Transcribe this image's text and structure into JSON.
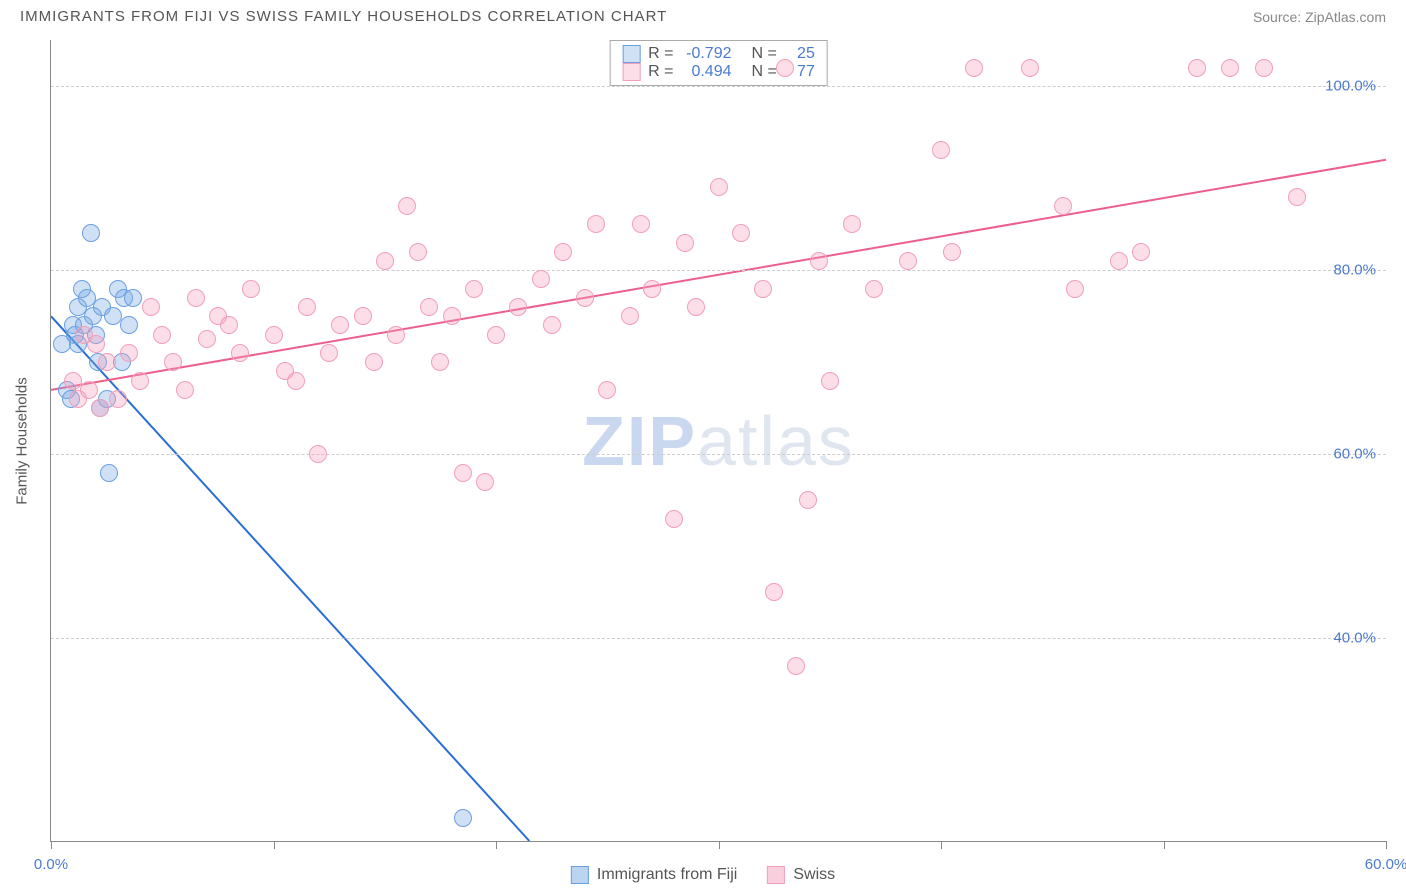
{
  "header": {
    "title": "IMMIGRANTS FROM FIJI VS SWISS FAMILY HOUSEHOLDS CORRELATION CHART",
    "source_prefix": "Source: ",
    "source_link": "ZipAtlas.com"
  },
  "watermark": {
    "part1": "ZIP",
    "part2": "atlas",
    "color1": "#c9d7ef",
    "color2": "#dfe6ef"
  },
  "chart": {
    "type": "scatter",
    "background_color": "#ffffff",
    "grid_color": "#cccccc",
    "axis_color": "#888888",
    "label_color": "#4a7bd0",
    "ylabel": "Family Households",
    "xlim": [
      0,
      60
    ],
    "ylim": [
      18,
      105
    ],
    "yticks": [
      40,
      60,
      80,
      100
    ],
    "ytick_labels": [
      "40.0%",
      "60.0%",
      "80.0%",
      "100.0%"
    ],
    "xticks": [
      0,
      10,
      20,
      30,
      40,
      50,
      60
    ],
    "xtick_labels": [
      "0.0%",
      "",
      "",
      "",
      "",
      "",
      "60.0%"
    ],
    "marker_radius": 9,
    "marker_border_width": 1.5,
    "series": [
      {
        "name": "Immigrants from Fiji",
        "color_fill": "rgba(120,170,230,0.35)",
        "color_stroke": "#6aa0e0",
        "trend_color": "#2b6fd6",
        "trend_width": 2,
        "R": "-0.792",
        "N": "25",
        "trend": {
          "x1": 0,
          "y1": 75,
          "x2": 21.5,
          "y2": 18
        },
        "points": [
          [
            0.5,
            72
          ],
          [
            0.7,
            67
          ],
          [
            0.9,
            66
          ],
          [
            1.0,
            74
          ],
          [
            1.1,
            73
          ],
          [
            1.2,
            76
          ],
          [
            1.2,
            72
          ],
          [
            1.4,
            78
          ],
          [
            1.5,
            74
          ],
          [
            1.6,
            77
          ],
          [
            1.8,
            84
          ],
          [
            1.9,
            75
          ],
          [
            2.0,
            73
          ],
          [
            2.1,
            70
          ],
          [
            2.2,
            65
          ],
          [
            2.3,
            76
          ],
          [
            2.5,
            66
          ],
          [
            2.6,
            58
          ],
          [
            2.8,
            75
          ],
          [
            3.0,
            78
          ],
          [
            3.2,
            70
          ],
          [
            3.3,
            77
          ],
          [
            3.5,
            74
          ],
          [
            3.7,
            77
          ],
          [
            18.5,
            20.5
          ]
        ]
      },
      {
        "name": "Swiss",
        "color_fill": "rgba(244,160,190,0.35)",
        "color_stroke": "#f29fb9",
        "trend_color": "#ec5e8c",
        "trend_width": 2,
        "R": "0.494",
        "N": "77",
        "trend": {
          "x1": 0,
          "y1": 67,
          "x2": 60,
          "y2": 92
        },
        "points": [
          [
            1,
            68
          ],
          [
            1.2,
            66
          ],
          [
            1.5,
            73
          ],
          [
            1.7,
            67
          ],
          [
            2,
            72
          ],
          [
            2.2,
            65
          ],
          [
            2.5,
            70
          ],
          [
            3,
            66
          ],
          [
            3.5,
            71
          ],
          [
            4,
            68
          ],
          [
            4.5,
            76
          ],
          [
            5,
            73
          ],
          [
            5.5,
            70
          ],
          [
            6,
            67
          ],
          [
            6.5,
            77
          ],
          [
            7,
            72.5
          ],
          [
            7.5,
            75
          ],
          [
            8,
            74
          ],
          [
            8.5,
            71
          ],
          [
            9,
            78
          ],
          [
            10,
            73
          ],
          [
            10.5,
            69
          ],
          [
            11,
            68
          ],
          [
            11.5,
            76
          ],
          [
            12,
            60
          ],
          [
            12.5,
            71
          ],
          [
            13,
            74
          ],
          [
            14,
            75
          ],
          [
            14.5,
            70
          ],
          [
            15,
            81
          ],
          [
            15.5,
            73
          ],
          [
            16,
            87
          ],
          [
            16.5,
            82
          ],
          [
            17,
            76
          ],
          [
            17.5,
            70
          ],
          [
            18,
            75
          ],
          [
            18.5,
            58
          ],
          [
            19,
            78
          ],
          [
            19.5,
            57
          ],
          [
            20,
            73
          ],
          [
            21,
            76
          ],
          [
            22,
            79
          ],
          [
            22.5,
            74
          ],
          [
            23,
            82
          ],
          [
            24,
            77
          ],
          [
            24.5,
            85
          ],
          [
            25,
            67
          ],
          [
            26,
            75
          ],
          [
            26.5,
            85
          ],
          [
            27,
            78
          ],
          [
            28,
            53
          ],
          [
            28.5,
            83
          ],
          [
            29,
            76
          ],
          [
            30,
            89
          ],
          [
            31,
            84
          ],
          [
            32,
            78
          ],
          [
            32.5,
            45
          ],
          [
            33,
            102
          ],
          [
            33.5,
            37
          ],
          [
            34,
            55
          ],
          [
            34.5,
            81
          ],
          [
            35,
            68
          ],
          [
            36,
            85
          ],
          [
            37,
            78
          ],
          [
            38.5,
            81
          ],
          [
            40,
            93
          ],
          [
            40.5,
            82
          ],
          [
            41.5,
            102
          ],
          [
            44,
            102
          ],
          [
            45.5,
            87
          ],
          [
            46,
            78
          ],
          [
            48,
            81
          ],
          [
            49,
            82
          ],
          [
            51.5,
            102
          ],
          [
            53,
            102
          ],
          [
            54.5,
            102
          ],
          [
            56,
            88
          ]
        ]
      }
    ]
  },
  "legend": {
    "items": [
      {
        "label": "Immigrants from Fiji",
        "fill": "rgba(120,170,230,0.5)",
        "stroke": "#6aa0e0"
      },
      {
        "label": "Swiss",
        "fill": "rgba(244,160,190,0.5)",
        "stroke": "#f29fb9"
      }
    ]
  }
}
